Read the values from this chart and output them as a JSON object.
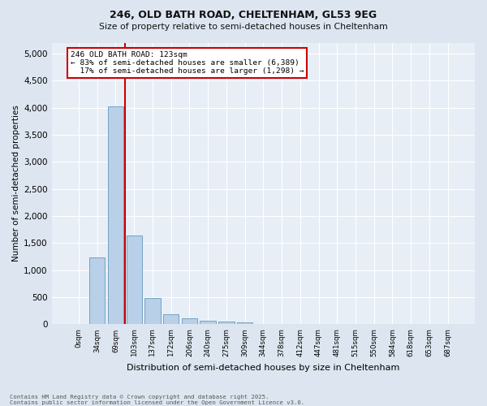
{
  "title1": "246, OLD BATH ROAD, CHELTENHAM, GL53 9EG",
  "title2": "Size of property relative to semi-detached houses in Cheltenham",
  "xlabel": "Distribution of semi-detached houses by size in Cheltenham",
  "ylabel": "Number of semi-detached properties",
  "categories": [
    "0sqm",
    "34sqm",
    "69sqm",
    "103sqm",
    "137sqm",
    "172sqm",
    "206sqm",
    "240sqm",
    "275sqm",
    "309sqm",
    "344sqm",
    "378sqm",
    "412sqm",
    "447sqm",
    "481sqm",
    "515sqm",
    "550sqm",
    "584sqm",
    "618sqm",
    "653sqm",
    "687sqm"
  ],
  "values": [
    5,
    1230,
    4030,
    1640,
    480,
    185,
    105,
    60,
    45,
    30,
    0,
    0,
    0,
    0,
    0,
    0,
    0,
    0,
    0,
    0,
    0
  ],
  "bar_color": "#b8d0e8",
  "bar_edge_color": "#6699bb",
  "property_label": "246 OLD BATH ROAD: 123sqm",
  "pct_smaller": "83%",
  "pct_smaller_count": "6,389",
  "pct_larger": "17%",
  "pct_larger_count": "1,298",
  "annotation_box_color": "#cc0000",
  "vline_color": "#cc0000",
  "vline_x_index": 3,
  "ylim": [
    0,
    5200
  ],
  "yticks": [
    0,
    500,
    1000,
    1500,
    2000,
    2500,
    3000,
    3500,
    4000,
    4500,
    5000
  ],
  "footer1": "Contains HM Land Registry data © Crown copyright and database right 2025.",
  "footer2": "Contains public sector information licensed under the Open Government Licence v3.0.",
  "bg_color": "#dde6f0",
  "plot_bg_color": "#e8eef6"
}
